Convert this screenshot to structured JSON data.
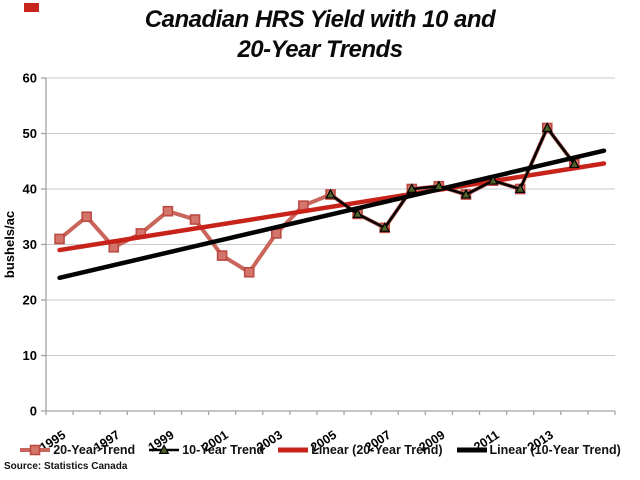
{
  "badge_color": "#c7251b",
  "title": {
    "line1": "Canadian HRS Yield with 10 and",
    "line2": "20-Year Trends"
  },
  "source": "Source: Statistics Canada",
  "legend": {
    "items": [
      {
        "label": "20-Year Trend"
      },
      {
        "label": "10-Year Trend"
      },
      {
        "label": "Linear (20-Year Trend)"
      },
      {
        "label": "Linear (10-Year Trend)"
      }
    ]
  },
  "chart_data": {
    "type": "line",
    "title": "Canadian HRS Yield with 10 and 20-Year Trends",
    "xlabel": "",
    "ylabel": "bushels/ac",
    "ylim": [
      0,
      60
    ],
    "yticks": [
      0,
      10,
      20,
      30,
      40,
      50,
      60
    ],
    "xtick_labels": [
      "1995",
      "1997",
      "1999",
      "2001",
      "2003",
      "2005",
      "2007",
      "2009",
      "2011",
      "2013"
    ],
    "grid": true,
    "legend_position": "bottom",
    "series": [
      {
        "name": "20-Year Trend",
        "marker": "square",
        "line_color": "#c9655b",
        "marker_fill": "#d3756b",
        "marker_stroke": "#bc4a42",
        "start_year": 1995,
        "x": [
          1995,
          1996,
          1997,
          1998,
          1999,
          2000,
          2001,
          2002,
          2003,
          2004,
          2005,
          2006,
          2007,
          2008,
          2009,
          2010,
          2011,
          2012,
          2013,
          2014
        ],
        "values": [
          31,
          35,
          29.5,
          32,
          36,
          34.5,
          28,
          25,
          32,
          37,
          39,
          35.5,
          33,
          40,
          40.5,
          39,
          41.5,
          40,
          51,
          44.5
        ]
      },
      {
        "name": "10-Year Trend",
        "marker": "triangle",
        "line_color": "#000000",
        "marker_fill": "#4f6228",
        "marker_stroke": "#000000",
        "start_year": 2005,
        "x": [
          2005,
          2006,
          2007,
          2008,
          2009,
          2010,
          2011,
          2012,
          2013,
          2014
        ],
        "values": [
          39,
          35.5,
          33,
          40,
          40.5,
          39,
          41.5,
          40,
          51,
          44.5
        ]
      }
    ],
    "trendlines": [
      {
        "name": "Linear (20-Year Trend)",
        "color": "#c8231a",
        "value_at_1995": 29,
        "value_at_right_edge": 44.6
      },
      {
        "name": "Linear (10-Year Trend)",
        "color": "#030303",
        "value_at_1995": 24,
        "value_at_right_edge": 46.9
      }
    ],
    "axis_color": "#a3a3a3",
    "grid_color": "#c9c9c9"
  }
}
